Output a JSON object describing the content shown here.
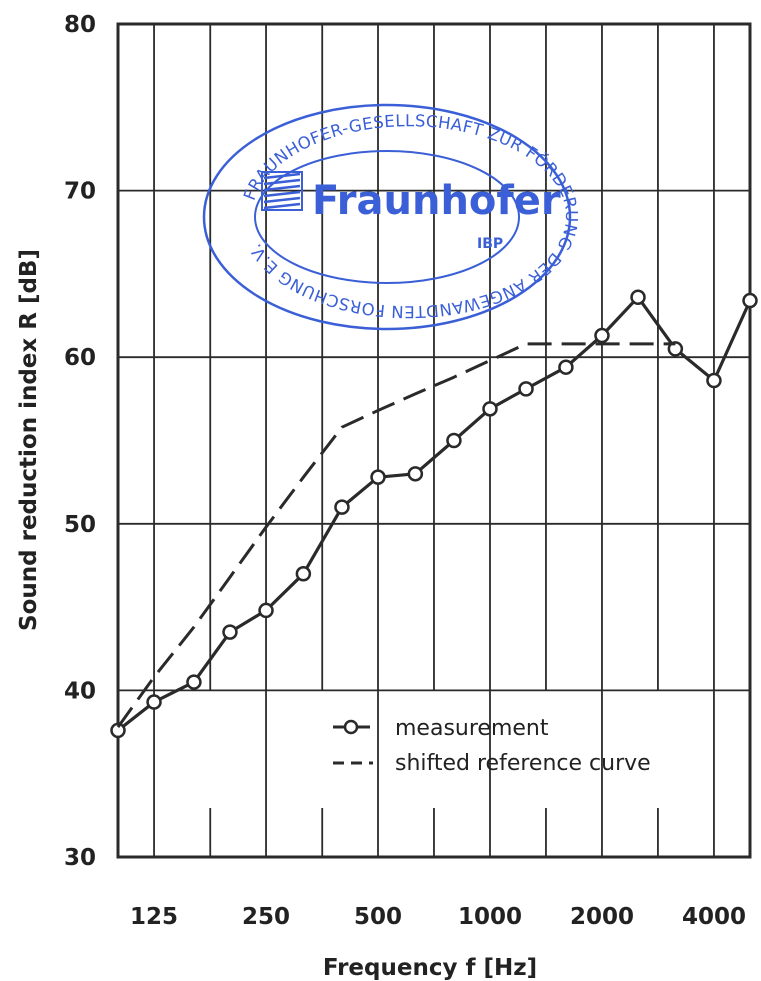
{
  "chart_data": {
    "type": "line",
    "xlabel": "Frequency f [Hz]",
    "ylabel": "Sound reduction index R [dB]",
    "ylim": [
      30,
      80
    ],
    "y_ticks": [
      30,
      40,
      50,
      60,
      70,
      80
    ],
    "x_scale": "log",
    "x_tick_labels": [
      "125",
      "250",
      "500",
      "1000",
      "2000",
      "4000"
    ],
    "x_ticks": [
      125,
      250,
      500,
      1000,
      2000,
      4000
    ],
    "grid": true,
    "legend_position": "bottom-right",
    "series": [
      {
        "name": "measurement",
        "style": "solid-with-circles",
        "x": [
          100,
          125,
          160,
          200,
          250,
          315,
          400,
          500,
          630,
          800,
          1000,
          1250,
          1600,
          2000,
          2500,
          3150,
          4000,
          5000
        ],
        "y": [
          37.6,
          39.3,
          40.5,
          43.5,
          44.8,
          47.0,
          51.0,
          52.8,
          53.0,
          55.0,
          56.9,
          58.1,
          59.4,
          61.3,
          63.6,
          60.5,
          58.6,
          63.4
        ]
      },
      {
        "name": "shifted reference curve",
        "style": "dashed",
        "x": [
          100,
          125,
          160,
          200,
          250,
          315,
          400,
          500,
          630,
          800,
          1000,
          1250,
          1600,
          2000,
          2500,
          3150
        ],
        "y": [
          37.8,
          40.8,
          43.8,
          46.8,
          49.8,
          52.8,
          55.8,
          56.8,
          57.8,
          58.8,
          59.8,
          60.8,
          60.8,
          60.8,
          60.8,
          60.8
        ]
      }
    ]
  },
  "stamp": {
    "ring_text_top": "FRAUNHOFER-GESELLSCHAFT ZUR FÖRDERUNG DER ANGEWANDTEN FORSCHUNG E.V.",
    "logo_text": "Fraunhofer",
    "sub_text": "IBP",
    "color": "#3a5fd6"
  },
  "colors": {
    "line": "#2a2a2a",
    "grid": "#2a2a2a"
  }
}
